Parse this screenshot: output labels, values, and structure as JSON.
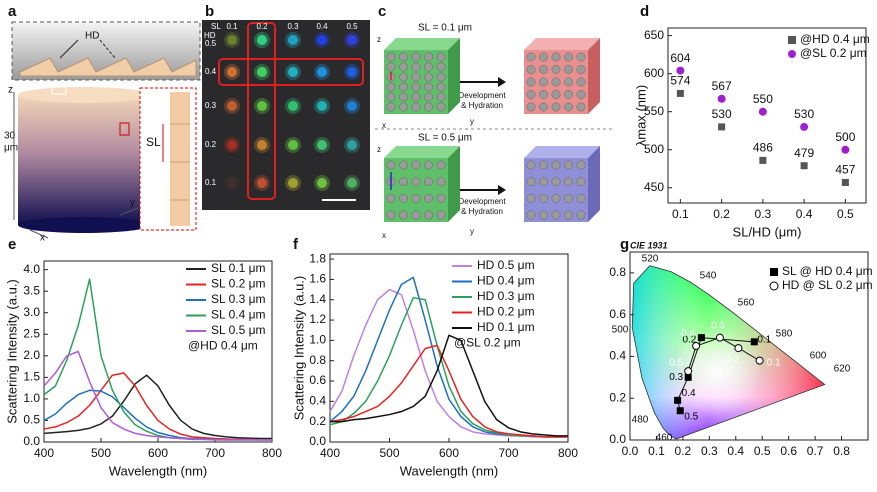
{
  "panel_labels": [
    "a",
    "b",
    "c",
    "d",
    "e",
    "f",
    "g"
  ],
  "panel_a": {
    "hd_label": "HD",
    "sl_label": "SL",
    "axis_z": "z",
    "axis_x": "x",
    "axis_y": "y",
    "scale_value": "30",
    "scale_unit": "μm"
  },
  "panel_b": {
    "sl_header": "SL",
    "hd_header": "HD",
    "columns": [
      "0.1",
      "0.2",
      "0.3",
      "0.4",
      "0.5"
    ],
    "rows": [
      "0.5",
      "0.4",
      "0.3",
      "0.2",
      "0.1"
    ],
    "dot_colors": [
      [
        "#6a8030",
        "#30d080",
        "#20a0c0",
        "#2040e0",
        "#3040e0"
      ],
      [
        "#d07030",
        "#40d060",
        "#20b0c0",
        "#2090e0",
        "#2060e0"
      ],
      [
        "#c06030",
        "#60c040",
        "#30c070",
        "#20b0b0",
        "#2080d0"
      ],
      [
        "#a03020",
        "#c08030",
        "#60c040",
        "#40c070",
        "#30a0a0"
      ],
      [
        "#403030",
        "#c05030",
        "#a0a030",
        "#70c040",
        "#50b060"
      ]
    ]
  },
  "panel_c": {
    "top_title": "SL = 0.1 μm",
    "bottom_title": "SL = 0.5 μm",
    "process": [
      "Development",
      "& Hydration"
    ],
    "axes": [
      "z",
      "x",
      "y"
    ]
  },
  "chart_data": [
    {
      "type": "scatter",
      "x_label": "SL/HD (μm)",
      "y_label": "λmax (nm)",
      "x": [
        0.1,
        0.2,
        0.3,
        0.4,
        0.5
      ],
      "series": [
        {
          "name": "@HD 0.4 μm",
          "color": "#555555",
          "marker": "square",
          "values": [
            574,
            530,
            486,
            479,
            457
          ]
        },
        {
          "name": "@SL 0.2 μm",
          "color": "#a020d0",
          "marker": "circle",
          "values": [
            604,
            567,
            550,
            530,
            500
          ]
        }
      ],
      "xlim": [
        0.07,
        0.55
      ],
      "xticks": [
        0.1,
        0.2,
        0.3,
        0.4,
        0.5
      ],
      "ylim": [
        430,
        660
      ],
      "yticks": [
        450,
        500,
        550,
        600,
        650
      ],
      "legend": "upper right"
    },
    {
      "type": "line",
      "x_label": "Wavelength (nm)",
      "y_label": "Scattering Intensity (a.u.)",
      "annotation": "@HD 0.4 μm",
      "x": [
        400,
        420,
        440,
        460,
        480,
        500,
        520,
        540,
        560,
        580,
        600,
        620,
        640,
        660,
        680,
        700,
        720,
        740,
        760,
        780,
        800
      ],
      "series": [
        {
          "name": "SL 0.1 μm",
          "color": "#222222",
          "values": [
            0.2,
            0.22,
            0.24,
            0.27,
            0.32,
            0.42,
            0.6,
            0.95,
            1.35,
            1.55,
            1.3,
            0.85,
            0.5,
            0.3,
            0.2,
            0.15,
            0.12,
            0.1,
            0.09,
            0.08,
            0.08
          ]
        },
        {
          "name": "SL 0.2 μm",
          "color": "#e8231f",
          "values": [
            0.3,
            0.35,
            0.45,
            0.6,
            0.85,
            1.2,
            1.55,
            1.6,
            1.3,
            0.85,
            0.5,
            0.3,
            0.18,
            0.12,
            0.1,
            0.08,
            0.07,
            0.06,
            0.06,
            0.05,
            0.05
          ]
        },
        {
          "name": "SL 0.3 μm",
          "color": "#1f6fc0",
          "values": [
            0.5,
            0.65,
            0.9,
            1.1,
            1.2,
            1.18,
            1.05,
            0.8,
            0.55,
            0.35,
            0.22,
            0.15,
            0.1,
            0.08,
            0.07,
            0.06,
            0.05,
            0.05,
            0.05,
            0.05,
            0.05
          ]
        },
        {
          "name": "SL 0.4 μm",
          "color": "#2ca05a",
          "values": [
            1.1,
            1.3,
            1.9,
            2.7,
            3.78,
            2.0,
            1.2,
            0.7,
            0.4,
            0.25,
            0.15,
            0.1,
            0.08,
            0.06,
            0.06,
            0.05,
            0.05,
            0.05,
            0.05,
            0.05,
            0.05
          ]
        },
        {
          "name": "SL 0.5 μm",
          "color": "#b05ad8",
          "values": [
            1.3,
            1.6,
            2.0,
            2.1,
            1.4,
            0.8,
            0.45,
            0.3,
            0.2,
            0.15,
            0.12,
            0.1,
            0.08,
            0.07,
            0.06,
            0.05,
            0.05,
            0.05,
            0.05,
            0.05,
            0.05
          ]
        }
      ],
      "xlim": [
        400,
        800
      ],
      "xticks": [
        400,
        500,
        600,
        700,
        800
      ],
      "ylim": [
        0,
        4.2
      ],
      "yticks": [
        {
          "value": 0,
          "label": "0.0"
        },
        0.5,
        {
          "value": 1,
          "label": "1.0"
        },
        1.5,
        {
          "value": 2,
          "label": "2.0"
        },
        2.5,
        {
          "value": 3,
          "label": "3.0"
        },
        3.5,
        {
          "value": 4,
          "label": "4.0"
        }
      ],
      "legend": "upper right"
    },
    {
      "type": "line",
      "x_label": "Wavelength (nm)",
      "y_label": "Scattering Intensity (a.u.)",
      "annotation": "@SL 0.2 μm",
      "x": [
        400,
        420,
        440,
        460,
        480,
        500,
        520,
        540,
        560,
        580,
        600,
        620,
        640,
        660,
        680,
        700,
        720,
        740,
        760,
        780,
        800
      ],
      "series": [
        {
          "name": "HD 0.5 μm",
          "color": "#c080e0",
          "values": [
            0.3,
            0.5,
            0.85,
            1.15,
            1.4,
            1.5,
            1.45,
            1.1,
            0.7,
            0.4,
            0.25,
            0.15,
            0.1,
            0.08,
            0.07,
            0.06,
            0.06,
            0.05,
            0.05,
            0.05,
            0.05
          ]
        },
        {
          "name": "HD 0.4 μm",
          "color": "#1f6fc0",
          "values": [
            0.2,
            0.3,
            0.45,
            0.7,
            1.0,
            1.3,
            1.55,
            1.62,
            1.2,
            0.75,
            0.42,
            0.25,
            0.15,
            0.1,
            0.08,
            0.07,
            0.06,
            0.06,
            0.05,
            0.05,
            0.05
          ]
        },
        {
          "name": "HD 0.3 μm",
          "color": "#2ca05a",
          "values": [
            0.17,
            0.2,
            0.28,
            0.4,
            0.6,
            0.85,
            1.15,
            1.42,
            1.4,
            0.95,
            0.55,
            0.3,
            0.18,
            0.12,
            0.09,
            0.07,
            0.06,
            0.06,
            0.05,
            0.05,
            0.05
          ]
        },
        {
          "name": "HD 0.2 μm",
          "color": "#e8231f",
          "values": [
            0.2,
            0.22,
            0.25,
            0.3,
            0.35,
            0.45,
            0.58,
            0.75,
            0.92,
            0.95,
            0.7,
            0.42,
            0.25,
            0.15,
            0.1,
            0.08,
            0.07,
            0.06,
            0.05,
            0.05,
            0.05
          ]
        },
        {
          "name": "HD 0.1 μm",
          "color": "#111111",
          "values": [
            0.2,
            0.2,
            0.22,
            0.23,
            0.25,
            0.27,
            0.3,
            0.35,
            0.45,
            0.7,
            1.05,
            1.0,
            0.7,
            0.4,
            0.22,
            0.14,
            0.1,
            0.08,
            0.07,
            0.06,
            0.06
          ]
        }
      ],
      "xlim": [
        400,
        800
      ],
      "xticks": [
        400,
        500,
        600,
        700,
        800
      ],
      "ylim": [
        0,
        1.85
      ],
      "yticks": [
        {
          "value": 0,
          "label": "0.0"
        },
        0.2,
        0.4,
        0.6,
        0.8,
        {
          "value": 1,
          "label": "1.0"
        },
        1.2,
        1.4,
        1.6,
        1.8
      ],
      "legend": "upper right"
    },
    {
      "type": "scatter",
      "title": "CIE 1931",
      "locus_labels": [
        520,
        540,
        560,
        580,
        600,
        620,
        500,
        480,
        460
      ],
      "series": [
        {
          "name": "SL @ HD 0.4 μm",
          "marker": "square",
          "color": "#000000",
          "label_color": "#000000",
          "x": [
            0.47,
            0.27,
            0.22,
            0.18,
            0.19
          ],
          "values": [
            0.47,
            0.49,
            0.3,
            0.19,
            0.14
          ],
          "point_labels": [
            "0.1",
            "0.2",
            "0.3",
            "0.4",
            "0.5"
          ]
        },
        {
          "name": "HD @ SL 0.2 μm",
          "marker": "open-circle",
          "color": "#000000",
          "label_color": "#ffffff",
          "x": [
            0.49,
            0.41,
            0.34,
            0.25,
            0.22
          ],
          "values": [
            0.38,
            0.44,
            0.49,
            0.45,
            0.33
          ],
          "point_labels": [
            "0.1",
            "0.2",
            "0.3",
            "0.4",
            "0.5"
          ]
        }
      ],
      "xlim": [
        0,
        0.9
      ],
      "xticks": [
        {
          "value": 0,
          "label": "0.0"
        },
        0.1,
        0.2,
        0.3,
        0.4,
        0.5,
        0.6,
        0.7,
        0.8
      ],
      "ylim": [
        0,
        0.9
      ],
      "yticks": [
        {
          "value": 0,
          "label": "0.0"
        },
        0.2,
        0.4,
        0.6,
        0.8
      ],
      "legend": "upper right"
    }
  ]
}
